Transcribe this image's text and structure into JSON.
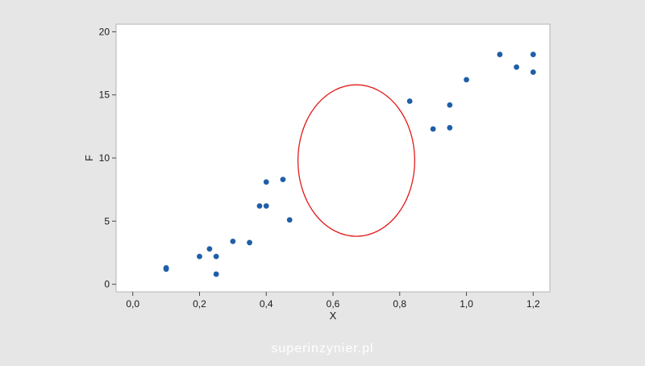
{
  "chart_data": {
    "type": "scatter",
    "title": "",
    "xlabel": "X",
    "ylabel": "F",
    "xlim": [
      -0.05,
      1.25
    ],
    "ylim": [
      -0.6,
      20.6
    ],
    "x_ticks": [
      0.0,
      0.2,
      0.4,
      0.6,
      0.8,
      1.0,
      1.2
    ],
    "x_tick_labels": [
      "0,0",
      "0,2",
      "0,4",
      "0,6",
      "0,8",
      "1,0",
      "1,2"
    ],
    "y_ticks": [
      0,
      5,
      10,
      15,
      20
    ],
    "y_tick_labels": [
      "0",
      "5",
      "10",
      "15",
      "20"
    ],
    "grid": false,
    "legend": "none",
    "series": [
      {
        "color": "#1f5fa8",
        "points": [
          {
            "x": 0.1,
            "y": 1.3
          },
          {
            "x": 0.1,
            "y": 1.2
          },
          {
            "x": 0.2,
            "y": 2.2
          },
          {
            "x": 0.23,
            "y": 2.8
          },
          {
            "x": 0.25,
            "y": 2.2
          },
          {
            "x": 0.25,
            "y": 0.8
          },
          {
            "x": 0.3,
            "y": 3.4
          },
          {
            "x": 0.35,
            "y": 3.3
          },
          {
            "x": 0.38,
            "y": 6.2
          },
          {
            "x": 0.4,
            "y": 6.2
          },
          {
            "x": 0.4,
            "y": 8.1
          },
          {
            "x": 0.45,
            "y": 8.3
          },
          {
            "x": 0.47,
            "y": 5.1
          },
          {
            "x": 0.83,
            "y": 14.5
          },
          {
            "x": 0.9,
            "y": 12.3
          },
          {
            "x": 0.95,
            "y": 12.4
          },
          {
            "x": 0.95,
            "y": 14.2
          },
          {
            "x": 1.0,
            "y": 16.2
          },
          {
            "x": 1.1,
            "y": 18.2
          },
          {
            "x": 1.15,
            "y": 17.2
          },
          {
            "x": 1.2,
            "y": 18.2
          },
          {
            "x": 1.2,
            "y": 16.8
          }
        ]
      }
    ],
    "annotation": {
      "shape": "ellipse",
      "color": "#e31b1b",
      "center": {
        "x": 0.67,
        "y": 9.8
      },
      "radius_x": 0.175,
      "radius_y": 6.0
    }
  },
  "watermark": "superinzynier.pl"
}
